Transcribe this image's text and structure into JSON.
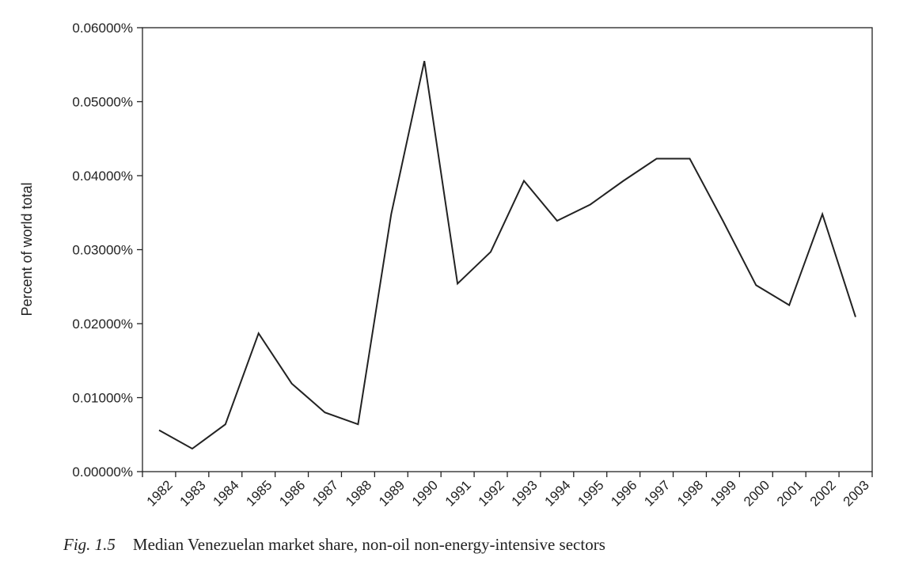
{
  "chart_data": {
    "type": "line",
    "ylabel": "Percent of world total",
    "ylim": [
      0,
      0.06
    ],
    "yticks": [
      "0.00000%",
      "0.01000%",
      "0.02000%",
      "0.03000%",
      "0.04000%",
      "0.05000%",
      "0.06000%"
    ],
    "categories": [
      "1982",
      "1983",
      "1984",
      "1985",
      "1986",
      "1987",
      "1988",
      "1989",
      "1990",
      "1991",
      "1992",
      "1993",
      "1994",
      "1995",
      "1996",
      "1997",
      "1998",
      "1999",
      "2000",
      "2001",
      "2002",
      "2003"
    ],
    "series": [
      {
        "values": [
          0.0056,
          0.0031,
          0.0064,
          0.0187,
          0.0119,
          0.008,
          0.0064,
          0.0348,
          0.0555,
          0.0254,
          0.0297,
          0.0393,
          0.0339,
          0.0361,
          0.0393,
          0.0423,
          0.0423,
          0.0339,
          0.0252,
          0.0225,
          0.0348,
          0.0209
        ]
      }
    ],
    "grid": false,
    "line_color": "#222222"
  },
  "caption": {
    "figure_number": "Fig. 1.5",
    "text": "Median Venezuelan market share, non-oil non-energy-intensive sectors"
  }
}
